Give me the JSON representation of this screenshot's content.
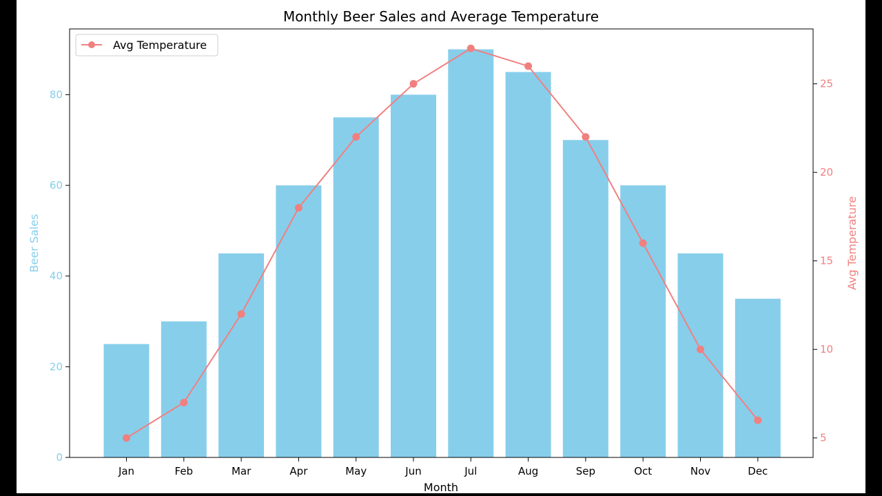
{
  "chart_data": {
    "type": "bar",
    "title": "Monthly Beer Sales and Average Temperature",
    "xlabel": "Month",
    "categories": [
      "Jan",
      "Feb",
      "Mar",
      "Apr",
      "May",
      "Jun",
      "Jul",
      "Aug",
      "Sep",
      "Oct",
      "Nov",
      "Dec"
    ],
    "series": [
      {
        "name": "Beer Sales",
        "type": "bar",
        "axis": "left",
        "color": "#87ceeb",
        "values": [
          25,
          30,
          45,
          60,
          75,
          80,
          90,
          85,
          70,
          60,
          45,
          35
        ]
      },
      {
        "name": "Avg Temperature",
        "type": "line",
        "axis": "right",
        "color": "#f08080",
        "marker": "circle",
        "values": [
          5,
          7,
          12,
          18,
          22,
          25,
          27,
          26,
          22,
          16,
          10,
          6
        ]
      }
    ],
    "y_left": {
      "label": "Beer Sales",
      "color": "#87ceeb",
      "lim": [
        0,
        94.5
      ],
      "ticks": [
        0,
        20,
        40,
        60,
        80
      ]
    },
    "y_right": {
      "label": "Avg Temperature",
      "color": "#f08080",
      "lim": [
        3.9,
        28.1
      ],
      "ticks": [
        5,
        10,
        15,
        20,
        25
      ]
    },
    "legend": {
      "placement": "top-left",
      "entries": [
        "Avg Temperature"
      ]
    },
    "grid": false
  }
}
